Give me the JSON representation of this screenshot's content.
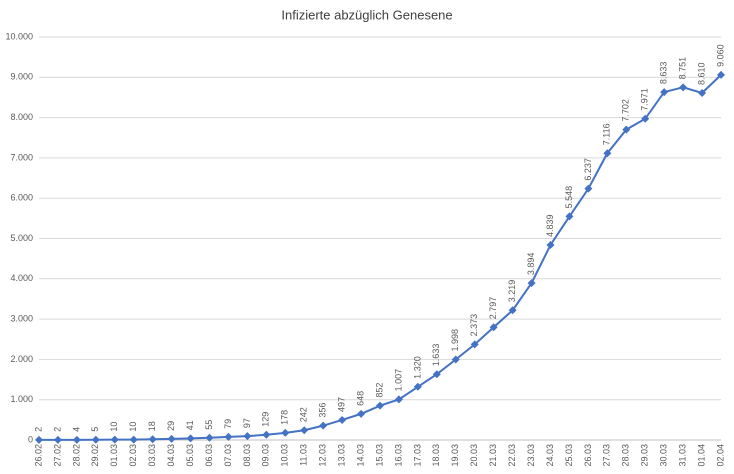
{
  "chart_data": {
    "type": "line",
    "title": "Infizierte abzüglich Genesene",
    "categories": [
      "26.02",
      "27.02",
      "28.02",
      "29.02",
      "01.03",
      "02.03",
      "03.03",
      "04.03",
      "05.03",
      "06.03",
      "07.03",
      "08.03",
      "09.03",
      "10.03",
      "11.03",
      "12.03",
      "13.03",
      "14.03",
      "15.03",
      "16.03",
      "17.03",
      "18.03",
      "19.03",
      "20.03",
      "21.03",
      "22.03",
      "23.03",
      "24.03",
      "25.03",
      "26.03",
      "27.03",
      "28.03",
      "29.03",
      "30.03",
      "31.03",
      "01.04",
      "02.04"
    ],
    "values": [
      2,
      2,
      4,
      5,
      10,
      10,
      18,
      29,
      41,
      55,
      79,
      97,
      129,
      178,
      242,
      356,
      497,
      648,
      852,
      1007,
      1320,
      1633,
      1998,
      2373,
      2797,
      3219,
      3894,
      4839,
      5548,
      6237,
      7116,
      7702,
      7971,
      8633,
      8751,
      8610,
      9060
    ],
    "value_labels": [
      "2",
      "2",
      "4",
      "5",
      "10",
      "10",
      "18",
      "29",
      "41",
      "55",
      "79",
      "97",
      "129",
      "178",
      "242",
      "356",
      "497",
      "648",
      "852",
      "1.007",
      "1.320",
      "1.633",
      "1.998",
      "2.373",
      "2.797",
      "3.219",
      "3.894",
      "4.839",
      "5.548",
      "6.237",
      "7.116",
      "7.702",
      "7.971",
      "8.633",
      "8.751",
      "8.610",
      "9.060"
    ],
    "color": "#4472c4",
    "ylim": [
      0,
      10000
    ],
    "yticks": [
      0,
      {
        "value": 1000,
        "label": "1.000"
      },
      {
        "value": 2000,
        "label": "2.000"
      },
      {
        "value": 3000,
        "label": "3.000"
      },
      {
        "value": 4000,
        "label": "4.000"
      },
      {
        "value": 5000,
        "label": "5.000"
      },
      {
        "value": 6000,
        "label": "6.000"
      },
      {
        "value": 7000,
        "label": "7.000"
      },
      {
        "value": 8000,
        "label": "8.000"
      },
      {
        "value": 9000,
        "label": "9.000"
      },
      {
        "value": 10000,
        "label": "10.000"
      }
    ],
    "grid": true
  }
}
